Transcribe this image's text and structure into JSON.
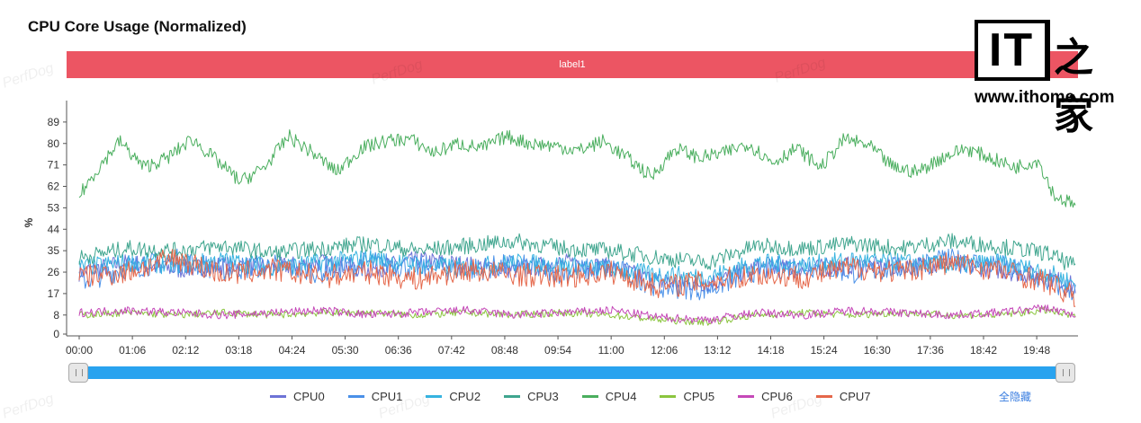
{
  "title": "CPU Core Usage (Normalized)",
  "label_bar": "label1",
  "watermark_text": "PerfDog",
  "logo": {
    "it": "IT",
    "cn": "之家",
    "url": "www.ithome.com"
  },
  "hide_all_label": "全隐藏",
  "chart_data": {
    "type": "line",
    "title": "CPU Core Usage (Normalized)",
    "ylabel": "%",
    "xlabel": "",
    "ylim": [
      0,
      98
    ],
    "y_ticks": [
      "0",
      "8",
      "17",
      "26",
      "35",
      "44",
      "53",
      "62",
      "71",
      "80",
      "89"
    ],
    "y_tick_values": [
      0,
      8,
      17,
      26,
      35,
      44,
      53,
      62,
      71,
      80,
      89
    ],
    "x_ticks": [
      "00:00",
      "01:06",
      "02:12",
      "03:18",
      "04:24",
      "05:30",
      "06:36",
      "07:42",
      "08:48",
      "09:54",
      "11:00",
      "12:06",
      "13:12",
      "14:18",
      "15:24",
      "16:30",
      "17:36",
      "18:42",
      "19:48"
    ],
    "x_tick_seconds": [
      0,
      66,
      132,
      198,
      264,
      330,
      396,
      462,
      528,
      594,
      660,
      726,
      792,
      858,
      924,
      990,
      1056,
      1122,
      1188
    ],
    "x_range_seconds": [
      0,
      1237
    ],
    "legend_position": "bottom",
    "grid": false,
    "series": [
      {
        "name": "CPU0",
        "color": "#6d73d6",
        "x": [
          0,
          60,
          120,
          180,
          240,
          300,
          360,
          420,
          480,
          540,
          600,
          660,
          720,
          780,
          840,
          900,
          960,
          1020,
          1080,
          1140,
          1200,
          1237
        ],
        "values": [
          26,
          30,
          27,
          29,
          28,
          30,
          27,
          31,
          29,
          27,
          30,
          28,
          22,
          21,
          28,
          27,
          29,
          28,
          30,
          27,
          24,
          20
        ]
      },
      {
        "name": "CPU1",
        "color": "#4a90e8",
        "x": [
          0,
          60,
          120,
          180,
          240,
          300,
          360,
          420,
          480,
          540,
          600,
          660,
          720,
          780,
          840,
          900,
          960,
          1020,
          1080,
          1140,
          1200,
          1237
        ],
        "values": [
          22,
          28,
          31,
          27,
          29,
          26,
          30,
          28,
          27,
          29,
          26,
          28,
          20,
          19,
          27,
          29,
          26,
          28,
          31,
          29,
          22,
          18
        ]
      },
      {
        "name": "CPU2",
        "color": "#36b3e0",
        "x": [
          0,
          60,
          120,
          180,
          240,
          300,
          360,
          420,
          480,
          540,
          600,
          660,
          720,
          780,
          840,
          900,
          960,
          1020,
          1080,
          1140,
          1200,
          1237
        ],
        "values": [
          28,
          30,
          29,
          31,
          28,
          30,
          32,
          29,
          28,
          30,
          29,
          27,
          25,
          24,
          30,
          29,
          31,
          30,
          29,
          30,
          26,
          21
        ]
      },
      {
        "name": "CPU3",
        "color": "#3fa58e",
        "x": [
          0,
          60,
          120,
          180,
          240,
          300,
          360,
          420,
          480,
          540,
          600,
          660,
          720,
          780,
          840,
          900,
          960,
          1020,
          1080,
          1140,
          1200,
          1237
        ],
        "values": [
          32,
          36,
          35,
          37,
          34,
          36,
          38,
          35,
          37,
          39,
          36,
          35,
          32,
          30,
          37,
          36,
          38,
          36,
          39,
          37,
          34,
          28
        ]
      },
      {
        "name": "CPU4",
        "color": "#4aae5e",
        "x": [
          0,
          20,
          50,
          80,
          110,
          140,
          170,
          200,
          230,
          260,
          290,
          320,
          350,
          380,
          410,
          440,
          470,
          500,
          530,
          560,
          590,
          620,
          650,
          680,
          710,
          740,
          770,
          800,
          830,
          860,
          890,
          920,
          950,
          980,
          1010,
          1040,
          1070,
          1100,
          1130,
          1160,
          1190,
          1210,
          1237
        ],
        "values": [
          58,
          68,
          81,
          70,
          74,
          82,
          73,
          64,
          70,
          83,
          76,
          68,
          78,
          81,
          82,
          76,
          80,
          78,
          83,
          80,
          79,
          77,
          81,
          74,
          66,
          78,
          74,
          76,
          80,
          72,
          78,
          70,
          82,
          79,
          70,
          68,
          74,
          78,
          74,
          70,
          73,
          58,
          54
        ]
      },
      {
        "name": "CPU5",
        "color": "#8bc53f",
        "x": [
          0,
          60,
          120,
          180,
          240,
          300,
          360,
          420,
          480,
          540,
          600,
          660,
          720,
          780,
          840,
          900,
          960,
          1020,
          1080,
          1140,
          1200,
          1237
        ],
        "values": [
          8,
          9,
          8,
          9,
          8,
          9,
          9,
          8,
          9,
          8,
          9,
          8,
          6,
          5,
          8,
          9,
          8,
          9,
          8,
          8,
          10,
          7
        ]
      },
      {
        "name": "CPU6",
        "color": "#c548b8",
        "x": [
          0,
          60,
          120,
          180,
          240,
          300,
          360,
          420,
          480,
          540,
          600,
          660,
          720,
          780,
          840,
          900,
          960,
          1020,
          1080,
          1140,
          1200,
          1237
        ],
        "values": [
          9,
          10,
          9,
          8,
          9,
          10,
          8,
          9,
          10,
          8,
          9,
          10,
          7,
          6,
          9,
          8,
          10,
          9,
          8,
          9,
          11,
          8
        ]
      },
      {
        "name": "CPU7",
        "color": "#e5674a",
        "x": [
          0,
          60,
          120,
          180,
          240,
          300,
          360,
          420,
          480,
          540,
          600,
          660,
          720,
          780,
          840,
          900,
          960,
          1020,
          1080,
          1140,
          1200,
          1237
        ],
        "values": [
          24,
          26,
          32,
          25,
          27,
          24,
          26,
          23,
          27,
          25,
          24,
          26,
          20,
          22,
          25,
          24,
          28,
          26,
          30,
          27,
          22,
          15
        ]
      }
    ]
  }
}
